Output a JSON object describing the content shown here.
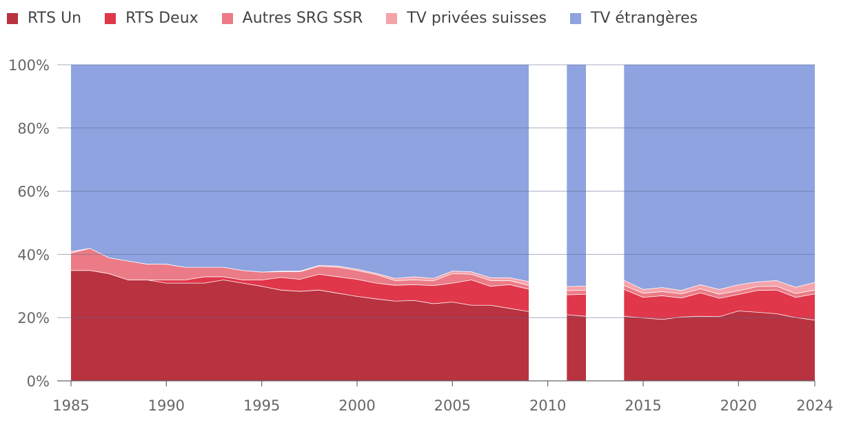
{
  "chart_data": {
    "type": "area",
    "stacked": true,
    "normalized": true,
    "title": "",
    "xlabel": "",
    "ylabel": "",
    "ylim": [
      0,
      100
    ],
    "y_ticks": [
      "0%",
      "20%",
      "40%",
      "60%",
      "80%",
      "100%"
    ],
    "x_ticks": [
      "1985",
      "1990",
      "1995",
      "2000",
      "2005",
      "2010",
      "2015",
      "2020",
      "2024"
    ],
    "legend_position": "top-left",
    "grid": true,
    "missing_years": [
      2010,
      2013
    ],
    "x": [
      1985,
      1986,
      1987,
      1988,
      1989,
      1990,
      1991,
      1992,
      1993,
      1994,
      1995,
      1996,
      1997,
      1998,
      1999,
      2000,
      2001,
      2002,
      2003,
      2004,
      2005,
      2006,
      2007,
      2008,
      2009,
      2010,
      2011,
      2012,
      2013,
      2014,
      2015,
      2016,
      2017,
      2018,
      2019,
      2020,
      2021,
      2022,
      2023,
      2024
    ],
    "series": [
      {
        "name": "RTS Un",
        "color": "#b83240",
        "values": [
          35,
          35,
          34,
          32,
          32,
          31,
          31,
          31,
          32,
          31,
          30,
          28.8,
          28.4,
          28.8,
          27.8,
          26.8,
          26,
          25.3,
          25.5,
          24.5,
          25,
          24,
          24,
          23,
          22,
          null,
          21,
          20.5,
          null,
          20.5,
          20,
          19.5,
          20.3,
          20.5,
          20.4,
          22.2,
          21.8,
          21.3,
          20.1,
          19.3
        ]
      },
      {
        "name": "RTS Deux",
        "color": "#e0374a",
        "values": [
          0,
          0,
          0,
          0,
          0,
          1,
          1,
          2,
          1,
          1,
          2,
          4,
          3.8,
          5,
          5.2,
          5.4,
          5,
          5,
          5,
          5.7,
          6,
          8,
          6,
          7.5,
          7.1,
          null,
          6.3,
          7,
          null,
          8.5,
          6.5,
          7.5,
          6,
          7.4,
          5.8,
          5.2,
          6.9,
          7.5,
          6.4,
          8.3
        ]
      },
      {
        "name": "Autres SRG SSR",
        "color": "#eb7b86",
        "values": [
          5.5,
          7,
          5,
          6,
          5,
          5,
          4,
          3,
          3,
          3,
          2.5,
          1.8,
          2.4,
          2.5,
          3,
          2.8,
          2.7,
          1.5,
          1.5,
          1.5,
          3,
          1.8,
          1.8,
          1.3,
          1.2,
          null,
          1.3,
          1.3,
          null,
          1.3,
          1.3,
          1.3,
          1.3,
          1.3,
          1.3,
          1.2,
          1.2,
          1.2,
          1.2,
          1.2
        ]
      },
      {
        "name": "TV privées suisses",
        "color": "#f4a3ab",
        "values": [
          0.5,
          0,
          0,
          0,
          0,
          0,
          0,
          0,
          0,
          0,
          0,
          0.2,
          0.2,
          0.3,
          0.4,
          0.4,
          0.4,
          0.7,
          1,
          0.8,
          0.8,
          0.8,
          0.9,
          0.9,
          1.2,
          null,
          1.3,
          1.3,
          null,
          1.6,
          1.2,
          1.3,
          1.1,
          1.3,
          1.5,
          1.9,
          1.5,
          1.8,
          2,
          2.4
        ]
      },
      {
        "name": "TV étrangères",
        "color": "#8ea3df",
        "values": [
          59,
          58,
          61,
          62,
          63,
          63,
          64,
          64,
          64,
          65,
          65.5,
          65.2,
          65.2,
          63.4,
          63.6,
          64.6,
          65.9,
          67.5,
          67,
          67.5,
          65.2,
          65.4,
          67.3,
          67.3,
          68.5,
          null,
          70.1,
          69.9,
          null,
          68.1,
          71,
          70.4,
          71.3,
          69.5,
          71,
          69.5,
          68.6,
          68.2,
          70.3,
          68.8
        ]
      }
    ]
  }
}
